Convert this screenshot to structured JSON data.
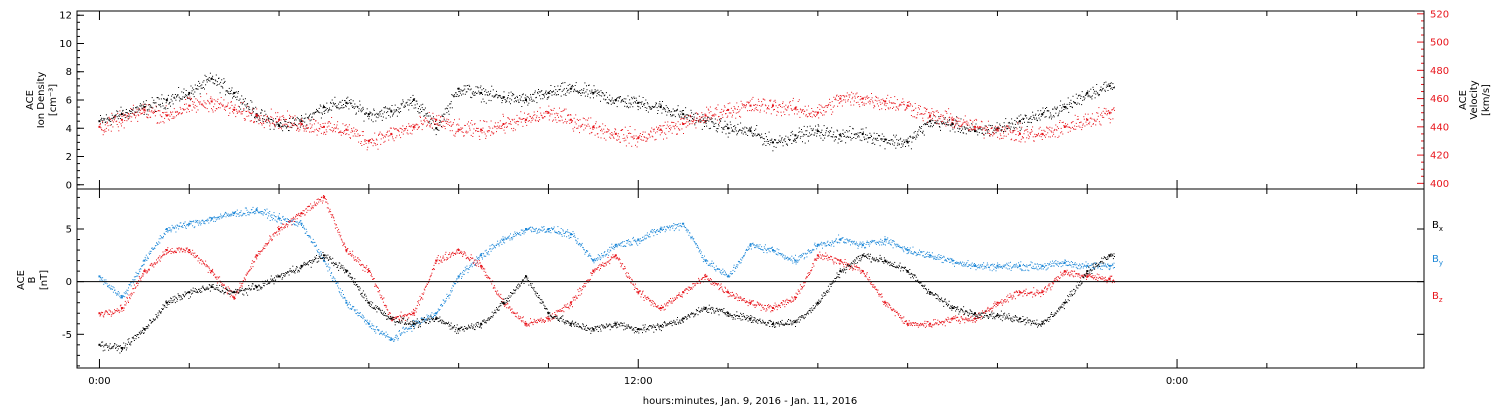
{
  "colors": {
    "black": "#000000",
    "red": "#e8141b",
    "blue": "#1e88d8"
  },
  "xaxis": {
    "label": "hours:minutes, Jan.  9, 2016 - Jan. 11, 2016",
    "range_hours": [
      -0.5,
      29.5
    ],
    "major_ticks": [
      {
        "hour": 0,
        "label": "0:00"
      },
      {
        "hour": 12,
        "label": "12:00"
      },
      {
        "hour": 24,
        "label": "0:00"
      }
    ],
    "minor_step_hours": 2,
    "data_end_hour": 22.6
  },
  "chart_data": [
    {
      "type": "scatter",
      "panel": "density-velocity",
      "ylabel_left": [
        "ACE",
        "Ion Density",
        "[cm⁻³]"
      ],
      "ylabel_right": [
        "ACE",
        "Velocity",
        "[km/s]"
      ],
      "ylim_left": [
        -0.3,
        12.3
      ],
      "ylim_right": [
        396,
        522
      ],
      "yticks_left": [
        0,
        2,
        4,
        6,
        8,
        10,
        12
      ],
      "yticks_right": [
        400,
        420,
        440,
        460,
        480,
        500,
        520
      ],
      "series": [
        {
          "color": "black",
          "axis": "left",
          "x": [
            0,
            0.5,
            1,
            1.5,
            2,
            2.5,
            3,
            3.5,
            4,
            4.5,
            5,
            5.5,
            6,
            6.5,
            7,
            7.5,
            8,
            8.5,
            9,
            9.5,
            10,
            10.5,
            11,
            11.5,
            12,
            12.5,
            13,
            13.5,
            14,
            14.5,
            15,
            15.5,
            16,
            16.5,
            17,
            17.5,
            18,
            18.5,
            19,
            19.5,
            20,
            20.5,
            21,
            21.5,
            22,
            22.5
          ],
          "y": [
            4.5,
            5.0,
            5.5,
            6.0,
            6.5,
            7.5,
            6.5,
            5.0,
            4.2,
            4.5,
            5.5,
            5.8,
            5.0,
            5.2,
            6.0,
            4.0,
            6.8,
            6.5,
            6.2,
            6.0,
            6.5,
            6.8,
            6.5,
            6.0,
            5.8,
            5.5,
            5.0,
            4.5,
            4.0,
            3.8,
            3.0,
            3.5,
            3.8,
            3.5,
            3.6,
            3.2,
            3.0,
            4.5,
            4.3,
            3.8,
            4.0,
            4.5,
            5.0,
            5.5,
            6.5,
            7.0
          ]
        },
        {
          "color": "red",
          "axis": "right",
          "x": [
            0,
            0.5,
            1,
            1.5,
            2,
            2.5,
            3,
            3.5,
            4,
            4.5,
            5,
            5.5,
            6,
            6.5,
            7,
            7.5,
            8,
            8.5,
            9,
            9.5,
            10,
            10.5,
            11,
            11.5,
            12,
            12.5,
            13,
            13.5,
            14,
            14.5,
            15,
            15.5,
            16,
            16.5,
            17,
            17.5,
            18,
            18.5,
            19,
            19.5,
            20,
            20.5,
            21,
            21.5,
            22,
            22.5
          ],
          "y": [
            440,
            445,
            452,
            448,
            455,
            458,
            452,
            448,
            445,
            442,
            440,
            438,
            430,
            435,
            440,
            445,
            438,
            438,
            442,
            445,
            450,
            445,
            440,
            435,
            432,
            438,
            442,
            448,
            452,
            455,
            455,
            453,
            450,
            460,
            460,
            458,
            455,
            448,
            445,
            440,
            438,
            435,
            435,
            440,
            445,
            450
          ]
        }
      ]
    },
    {
      "type": "scatter",
      "panel": "magnetic-field",
      "ylabel_left": [
        "ACE",
        "B",
        "[nT]"
      ],
      "ylim": [
        -8.2,
        8.8
      ],
      "yticks": [
        -5,
        0,
        5
      ],
      "zero_line": true,
      "legend": [
        {
          "label": "B",
          "sub": "x",
          "color": "black"
        },
        {
          "label": "B",
          "sub": "y",
          "color": "blue"
        },
        {
          "label": "B",
          "sub": "z",
          "color": "red"
        }
      ],
      "series": [
        {
          "color": "black",
          "x": [
            0,
            0.5,
            1,
            1.5,
            2,
            2.5,
            3,
            3.5,
            4,
            4.5,
            5,
            5.5,
            6,
            6.5,
            7,
            7.5,
            8,
            8.5,
            9,
            9.5,
            10,
            10.5,
            11,
            11.5,
            12,
            12.5,
            13,
            13.5,
            14,
            14.5,
            15,
            15.5,
            16,
            16.5,
            17,
            17.5,
            18,
            18.5,
            19,
            19.5,
            20,
            20.5,
            21,
            21.5,
            22,
            22.5
          ],
          "y": [
            -6.0,
            -6.3,
            -4.5,
            -2.0,
            -1.0,
            -0.5,
            -1.0,
            -0.5,
            0.5,
            1.5,
            2.5,
            1.0,
            -2.0,
            -3.5,
            -4.0,
            -3.5,
            -4.5,
            -4.0,
            -2.0,
            0.5,
            -3.0,
            -4.0,
            -4.5,
            -4.0,
            -4.5,
            -4.2,
            -3.5,
            -2.5,
            -3.0,
            -3.5,
            -4.0,
            -3.8,
            -2.0,
            1.0,
            2.5,
            2.0,
            1.0,
            -1.0,
            -2.5,
            -3.0,
            -3.2,
            -3.5,
            -4.0,
            -2.0,
            1.0,
            2.5
          ]
        },
        {
          "color": "blue",
          "x": [
            0,
            0.5,
            1,
            1.5,
            2,
            2.5,
            3,
            3.5,
            4,
            4.5,
            5,
            5.5,
            6,
            6.5,
            7,
            7.5,
            8,
            8.5,
            9,
            9.5,
            10,
            10.5,
            11,
            11.5,
            12,
            12.5,
            13,
            13.5,
            14,
            14.5,
            15,
            15.5,
            16,
            16.5,
            17,
            17.5,
            18,
            18.5,
            19,
            19.5,
            20,
            20.5,
            21,
            21.5,
            22,
            22.5
          ],
          "y": [
            0.5,
            -1.5,
            2.0,
            5.0,
            5.5,
            6.0,
            6.5,
            6.8,
            6.0,
            5.5,
            2.0,
            -2.0,
            -4.0,
            -5.5,
            -4.0,
            -3.0,
            0.5,
            2.5,
            4.0,
            5.0,
            5.0,
            4.5,
            2.0,
            3.5,
            4.0,
            5.0,
            5.5,
            2.0,
            0.5,
            3.5,
            3.0,
            2.0,
            3.5,
            4.0,
            3.5,
            4.0,
            3.0,
            2.5,
            2.0,
            1.5,
            1.5,
            1.5,
            1.5,
            1.8,
            1.5,
            1.5
          ]
        },
        {
          "color": "red",
          "x": [
            0,
            0.5,
            1,
            1.5,
            2,
            2.5,
            3,
            3.5,
            4,
            4.5,
            5,
            5.5,
            6,
            6.5,
            7,
            7.5,
            8,
            8.5,
            9,
            9.5,
            10,
            10.5,
            11,
            11.5,
            12,
            12.5,
            13,
            13.5,
            14,
            14.5,
            15,
            15.5,
            16,
            16.5,
            17,
            17.5,
            18,
            18.5,
            19,
            19.5,
            20,
            20.5,
            21,
            21.5,
            22,
            22.5
          ],
          "y": [
            -3.0,
            -2.5,
            1.0,
            3.0,
            3.0,
            1.0,
            -1.5,
            2.5,
            5.0,
            6.5,
            8.0,
            3.0,
            1.0,
            -3.5,
            -3.0,
            2.0,
            3.0,
            1.5,
            -2.0,
            -4.0,
            -3.5,
            -2.0,
            1.0,
            2.5,
            -1.0,
            -2.5,
            -1.0,
            0.5,
            -1.0,
            -2.0,
            -2.5,
            -1.5,
            2.5,
            2.0,
            1.0,
            -2.0,
            -4.0,
            -4.0,
            -3.5,
            -3.5,
            -2.0,
            -1.0,
            -1.0,
            1.0,
            0.5,
            0.3
          ]
        }
      ]
    }
  ]
}
